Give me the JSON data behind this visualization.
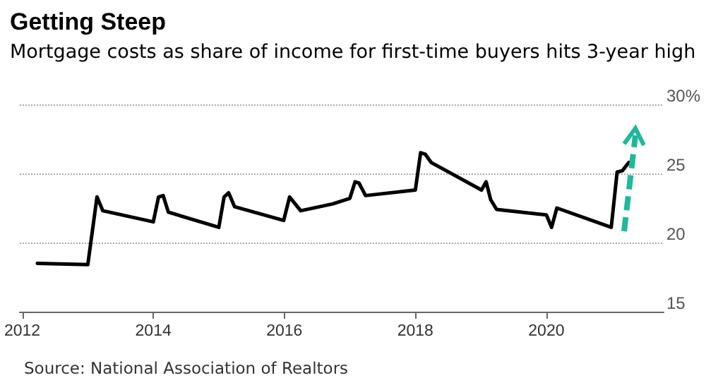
{
  "chart_data": {
    "type": "line",
    "title": "Getting Steep",
    "subtitle": "Mortgage costs as share of income for first-time buyers hits 3-year high",
    "x": [
      2012.23,
      2013.0,
      2013.14,
      2013.23,
      2014.0,
      2014.08,
      2014.15,
      2014.23,
      2015.0,
      2015.08,
      2015.15,
      2015.24,
      2015.99,
      2016.08,
      2016.25,
      2016.74,
      2017.0,
      2017.08,
      2017.14,
      2017.24,
      2018.0,
      2018.08,
      2018.15,
      2018.24,
      2019.01,
      2019.08,
      2019.15,
      2019.24,
      2020.0,
      2020.08,
      2020.16,
      2020.99,
      2021.08,
      2021.16,
      2021.26
    ],
    "series": [
      {
        "color": "#000000",
        "values": [
          18.5,
          18.4,
          23.3,
          22.3,
          21.5,
          23.3,
          23.4,
          22.2,
          21.1,
          23.3,
          23.6,
          22.6,
          21.6,
          23.3,
          22.3,
          22.8,
          23.2,
          24.4,
          24.3,
          23.4,
          23.8,
          26.5,
          26.4,
          25.8,
          23.8,
          24.4,
          23.1,
          22.4,
          22.0,
          21.1,
          22.5,
          21.1,
          25.1,
          25.2,
          25.8
        ]
      }
    ],
    "xlim": [
      2011.96,
      2021.79
    ],
    "xticks": [
      2012,
      2014,
      2016,
      2018,
      2020
    ],
    "ylim": [
      15,
      30
    ],
    "yticks": [
      15,
      20,
      25,
      {
        "value": 30,
        "label": "30%"
      }
    ],
    "grid": "y",
    "marker": "none",
    "line_style": "solid",
    "annotations": [
      "Source: National Association of Realtors"
    ]
  }
}
